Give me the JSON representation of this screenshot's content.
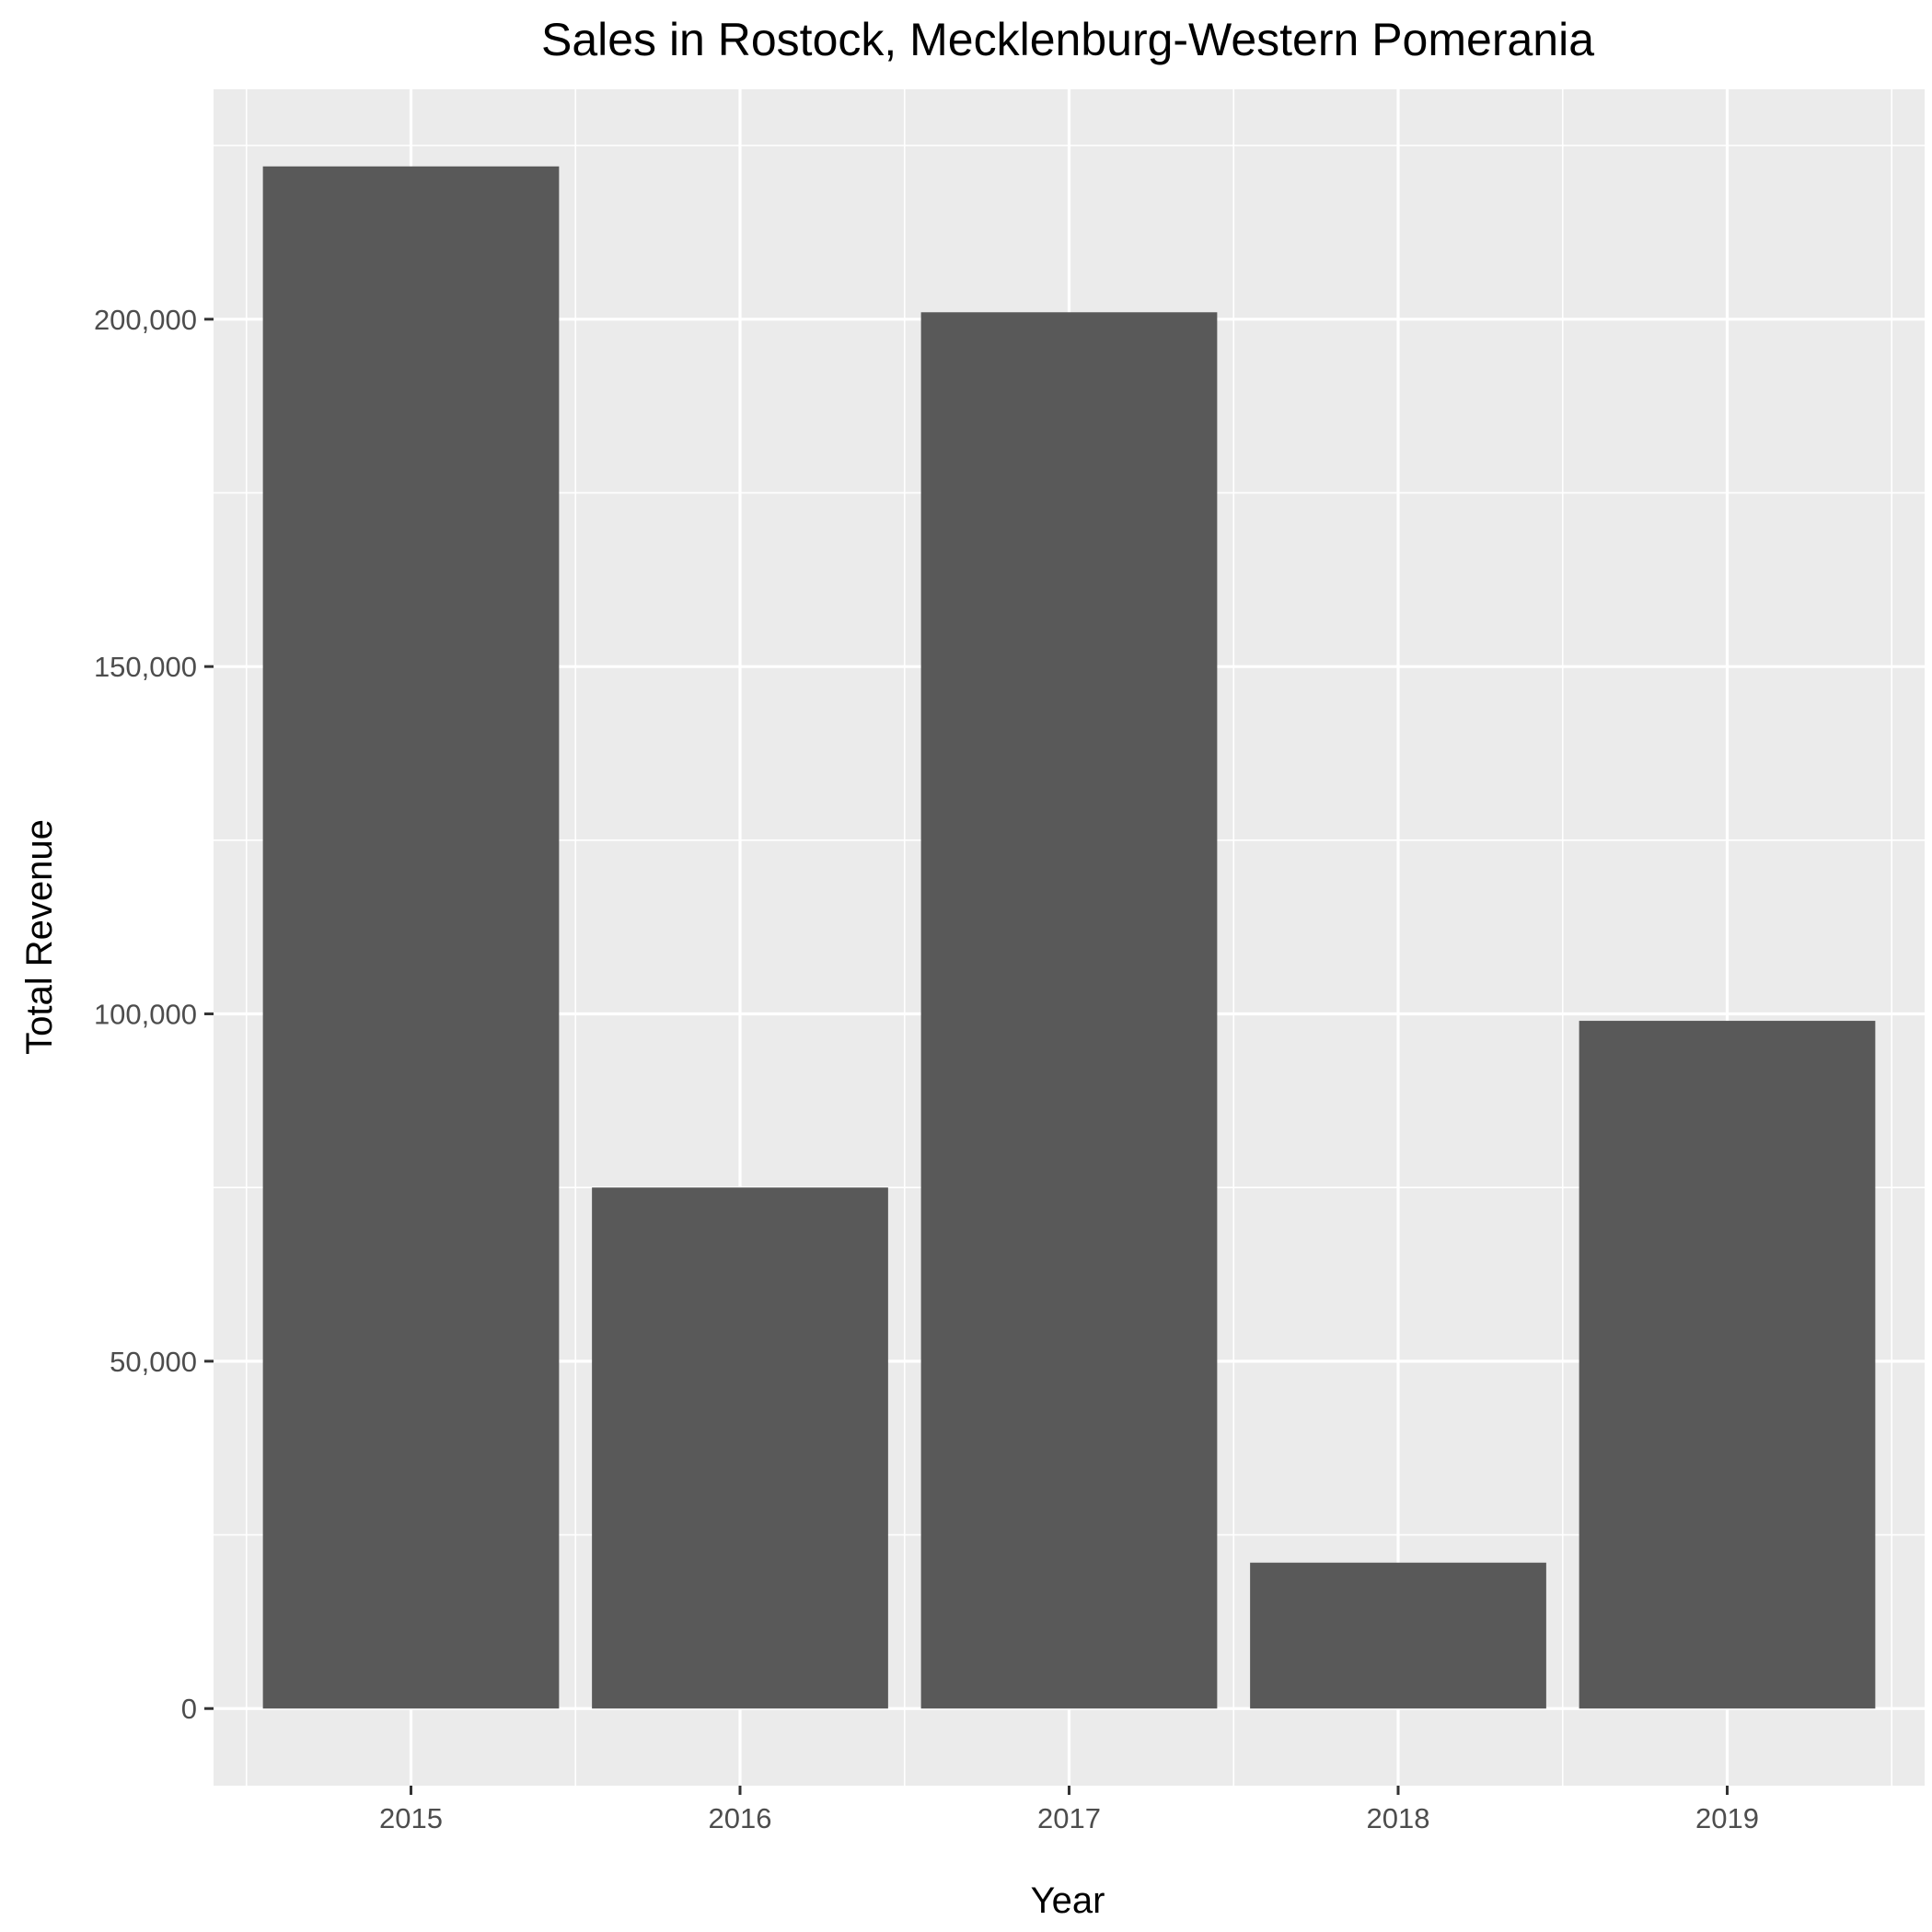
{
  "chart_data": {
    "type": "bar",
    "title": "Sales in Rostock, Mecklenburg-Western Pomerania",
    "xlabel": "Year",
    "ylabel": "Total Revenue",
    "categories": [
      "2015",
      "2016",
      "2017",
      "2018",
      "2019"
    ],
    "values": [
      222000,
      75000,
      201000,
      21000,
      99000
    ],
    "ylim": [
      -11100,
      233100
    ],
    "yticks": [
      0,
      50000,
      100000,
      150000,
      200000
    ],
    "ytick_labels": [
      "0",
      "50,000",
      "100,000",
      "150,000",
      "200,000"
    ],
    "grid": true,
    "legend": "none",
    "colors": {
      "bar": "#595959",
      "panel": "#ebebeb",
      "grid": "#ffffff",
      "tick": "#333333"
    }
  }
}
